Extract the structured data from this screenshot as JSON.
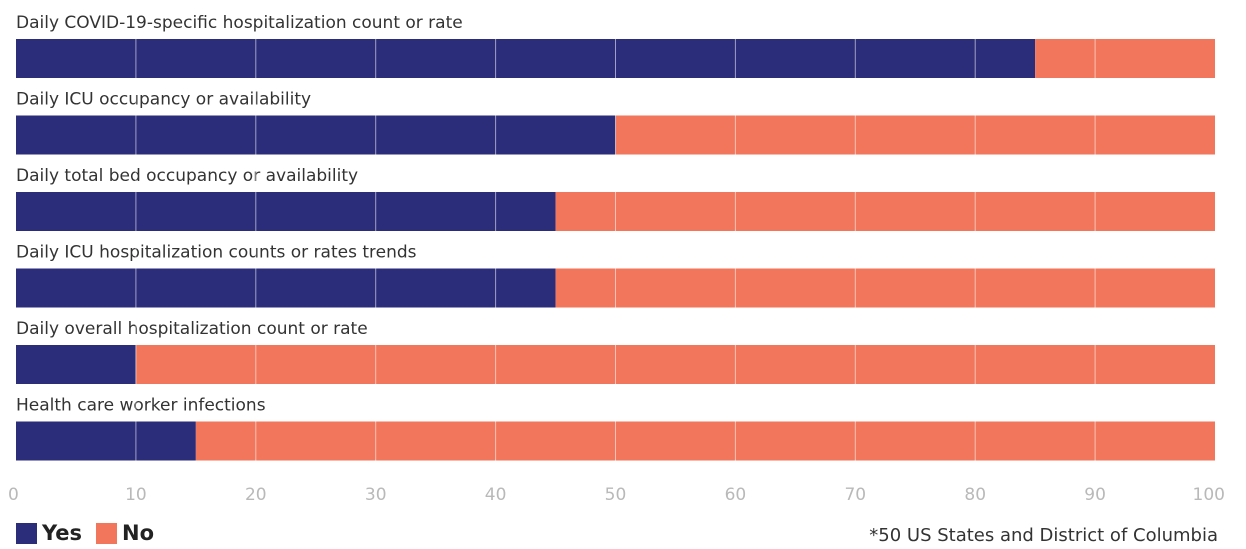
{
  "chart_data": {
    "type": "bar",
    "orientation": "horizontal",
    "stacked": true,
    "categories": [
      "Daily COVID-19-specific hospitalization count or rate",
      "Daily ICU occupancy or availability",
      "Daily total bed occupancy or availability",
      "Daily ICU hospitalization counts or rates trends",
      "Daily overall hospitalization count or rate",
      "Health care worker infections"
    ],
    "series": [
      {
        "name": "Yes",
        "color": "#2b2d7a",
        "values": [
          85,
          50,
          45,
          45,
          10,
          15
        ]
      },
      {
        "name": "No",
        "color": "#f2765b",
        "values": [
          15,
          50,
          55,
          55,
          90,
          85
        ]
      }
    ],
    "xlim": [
      0,
      100
    ],
    "xticks": [
      "0",
      "10",
      "20",
      "30",
      "40",
      "50",
      "60",
      "70",
      "80",
      "90",
      "100"
    ],
    "grid": true,
    "legend_position": "bottom-left",
    "footnote": "*50 US States and District of Columbia"
  }
}
